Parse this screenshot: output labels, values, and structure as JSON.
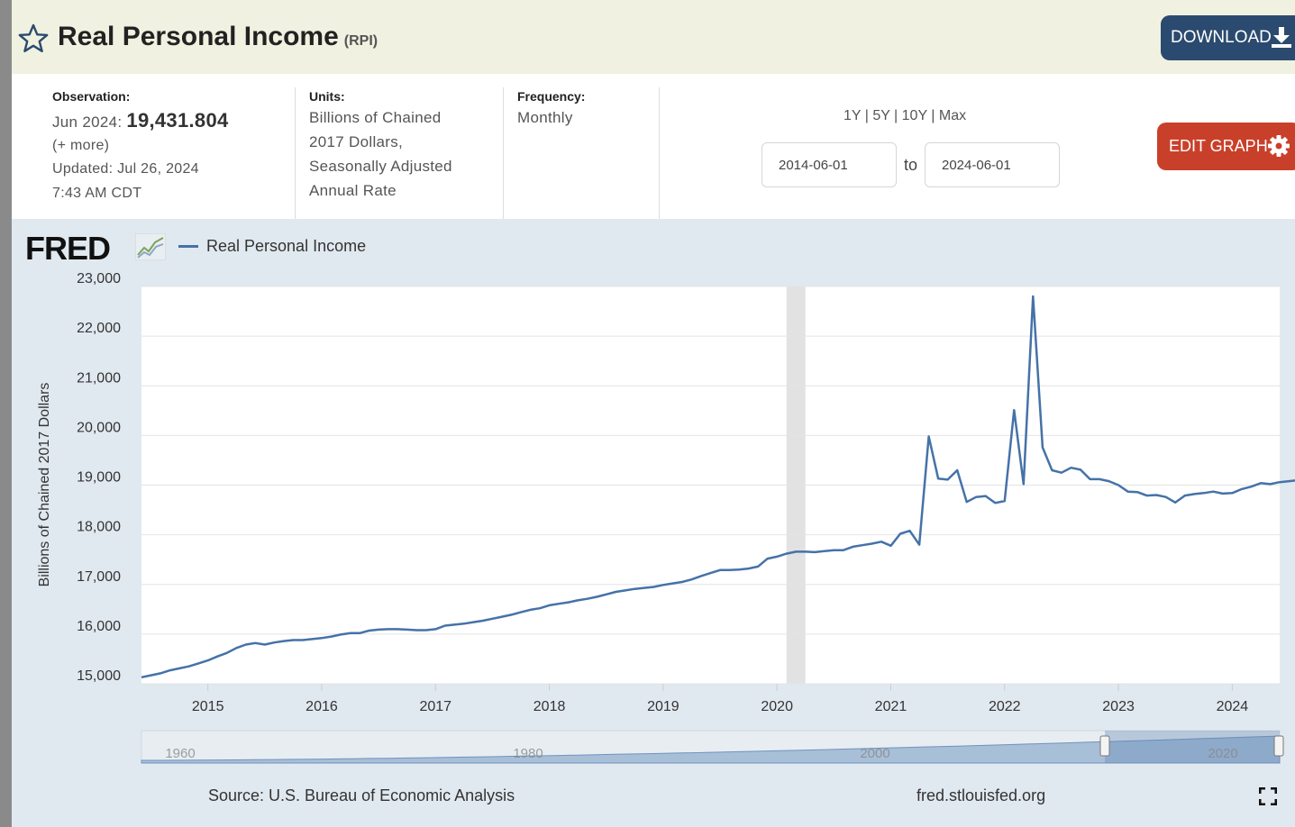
{
  "header": {
    "title": "Real Personal Income",
    "series_id": "(RPI)",
    "download_label": "DOWNLOAD",
    "edit_label": "EDIT GRAPH"
  },
  "meta": {
    "observation_label": "Observation:",
    "observation_date": "Jun 2024:",
    "observation_value": "19,431.804",
    "more_link": "(+ more)",
    "updated": "Updated: Jul 26, 2024",
    "updated_time": "7:43 AM CDT",
    "units_label": "Units:",
    "units_lines": [
      "Billions of Chained",
      "2017 Dollars,",
      "Seasonally Adjusted",
      "Annual Rate"
    ],
    "frequency_label": "Frequency:",
    "frequency": "Monthly"
  },
  "range": {
    "presets": [
      "1Y",
      "5Y",
      "10Y",
      "Max"
    ],
    "separator": " | ",
    "start": "2014-06-01",
    "to_label": "to",
    "end": "2024-06-01"
  },
  "footer": {
    "source": "Source: U.S. Bureau of Economic Analysis",
    "url": "fred.stlouisfed.org"
  },
  "colors": {
    "series": "#4572a7",
    "header_bg": "#f0f1e0",
    "download_bg": "#2b4a6f",
    "edit_bg": "#c9402a",
    "chart_bg": "#e1e9f0",
    "recession": "#e2e2e2"
  },
  "chart_data": {
    "type": "line",
    "logo": "FRED",
    "legend": [
      "Real Personal Income"
    ],
    "ylabel": "Billions of Chained 2017 Dollars",
    "ylim": [
      15000,
      23000
    ],
    "yticks": [
      15000,
      16000,
      17000,
      18000,
      19000,
      20000,
      21000,
      22000,
      23000
    ],
    "ytick_labels": [
      "15,000",
      "16,000",
      "17,000",
      "18,000",
      "19,000",
      "20,000",
      "21,000",
      "22,000",
      "23,000"
    ],
    "xlim": [
      "2014-06-01",
      "2024-06-01"
    ],
    "xticks": [
      "2015",
      "2016",
      "2017",
      "2018",
      "2019",
      "2020",
      "2021",
      "2022",
      "2023",
      "2024"
    ],
    "recession": [
      "2020-02-01",
      "2020-04-01"
    ],
    "navigator_labels": [
      "1960",
      "1980",
      "2000",
      "2020"
    ],
    "series": [
      {
        "name": "Real Personal Income",
        "start": "2014-06",
        "frequency": "monthly",
        "values": [
          15130,
          15170,
          15210,
          15270,
          15310,
          15350,
          15410,
          15470,
          15550,
          15620,
          15720,
          15790,
          15820,
          15790,
          15830,
          15860,
          15880,
          15880,
          15900,
          15920,
          15950,
          15990,
          16020,
          16020,
          16070,
          16090,
          16100,
          16100,
          16090,
          16080,
          16080,
          16100,
          16170,
          16190,
          16210,
          16240,
          16270,
          16310,
          16350,
          16390,
          16440,
          16490,
          16520,
          16580,
          16610,
          16640,
          16680,
          16710,
          16750,
          16800,
          16850,
          16880,
          16910,
          16930,
          16950,
          16990,
          17020,
          17050,
          17100,
          17170,
          17230,
          17290,
          17290,
          17300,
          17320,
          17360,
          17520,
          17560,
          17620,
          17660,
          17660,
          17650,
          17670,
          17690,
          17690,
          17760,
          17790,
          17820,
          17860,
          17780,
          18020,
          18080,
          17800,
          19980,
          19130,
          19110,
          19300,
          18660,
          18760,
          18780,
          18640,
          18680,
          20510,
          19020,
          22800,
          19760,
          19300,
          19250,
          19350,
          19310,
          19120,
          19120,
          19080,
          19000,
          18870,
          18860,
          18790,
          18800,
          18760,
          18650,
          18790,
          18820,
          18840,
          18870,
          18830,
          18840,
          18920,
          18970,
          19040,
          19020,
          19060,
          19080,
          19100,
          19130,
          19120,
          19120,
          19150,
          19200,
          19280,
          19290,
          19310,
          19310,
          19390,
          19431.804
        ]
      }
    ]
  }
}
